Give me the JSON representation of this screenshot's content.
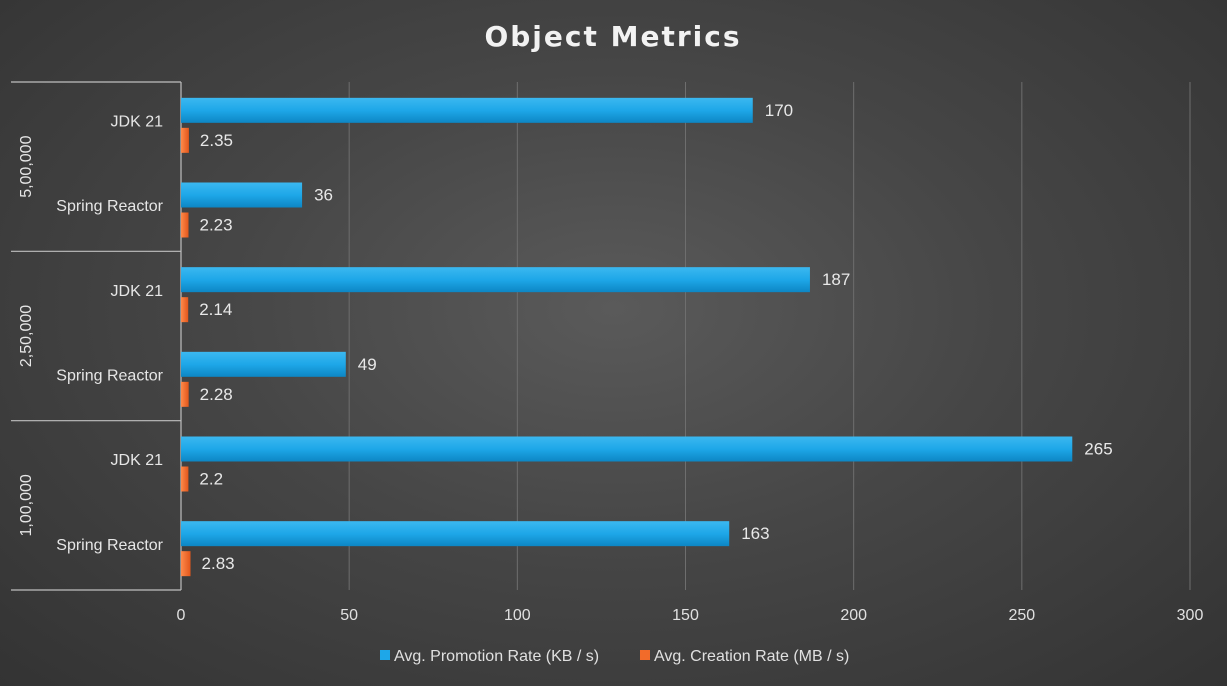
{
  "chart_data": {
    "type": "bar",
    "orientation": "horizontal",
    "title": "Object Metrics",
    "xlim": [
      0,
      300
    ],
    "xticks": [
      0,
      50,
      100,
      150,
      200,
      250,
      300
    ],
    "grid": true,
    "legend_position": "bottom",
    "groups": [
      {
        "name": "5,00,000",
        "categories": [
          "JDK 21",
          "Spring Reactor"
        ]
      },
      {
        "name": "2,50,000",
        "categories": [
          "JDK 21",
          "Spring Reactor"
        ]
      },
      {
        "name": "1,00,000",
        "categories": [
          "JDK 21",
          "Spring Reactor"
        ]
      }
    ],
    "series": [
      {
        "name": "Avg. Promotion Rate  (KB / s)",
        "color": "#1ea7e8",
        "values": [
          170,
          36,
          187,
          49,
          265,
          163
        ]
      },
      {
        "name": "Avg. Creation Rate  (MB / s)",
        "color": "#f26b2a",
        "values": [
          2.35,
          2.23,
          2.14,
          2.28,
          2.2,
          2.83
        ]
      }
    ]
  }
}
